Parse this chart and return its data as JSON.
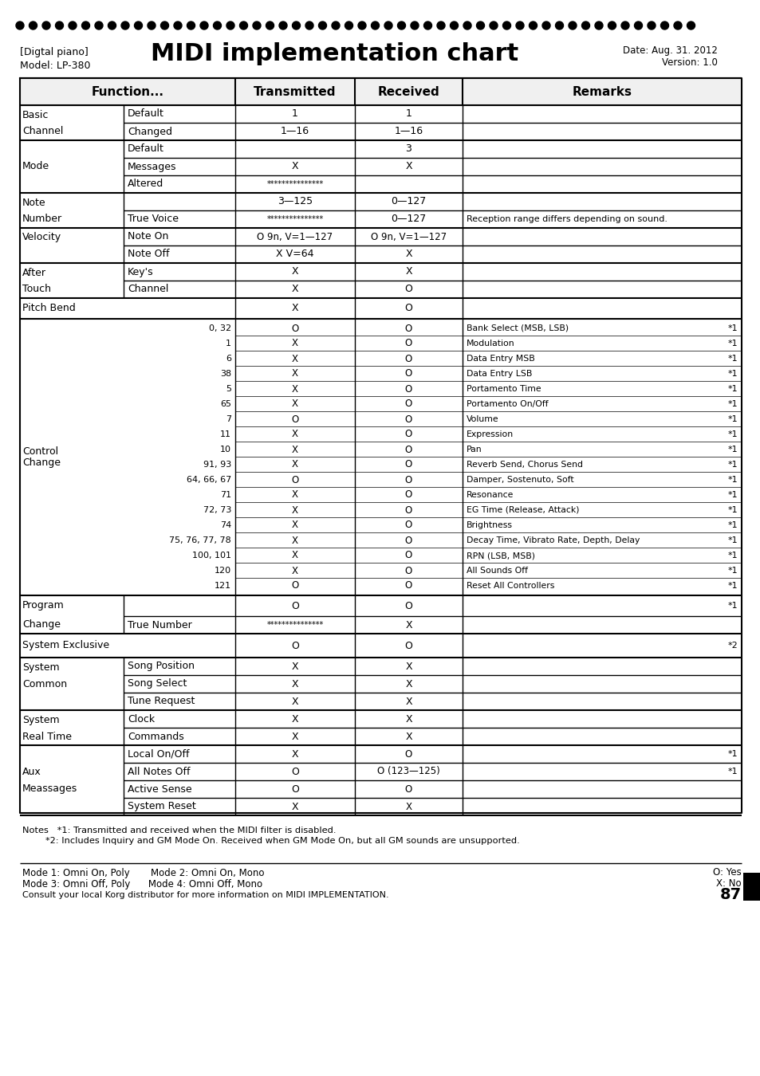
{
  "title": "MIDI implementation chart",
  "subtitle_left1": "[Digtal piano]",
  "subtitle_left2": "Model: LP-380",
  "subtitle_right1": "Date: Aug. 31. 2012",
  "subtitle_right2": "Version: 1.0",
  "col_headers": [
    "Function...",
    "Transmitted",
    "Received",
    "Remarks"
  ],
  "rows": [
    {
      "func1": "Basic",
      "func2": "Default",
      "trans": "1",
      "recv": "1",
      "remarks": ""
    },
    {
      "func1": "Channel",
      "func2": "Changed",
      "trans": "1—16",
      "recv": "1—16",
      "remarks": ""
    },
    {
      "func1": "",
      "func2": "Default",
      "trans": "",
      "recv": "3",
      "remarks": ""
    },
    {
      "func1": "Mode",
      "func2": "Messages",
      "trans": "X",
      "recv": "X",
      "remarks": ""
    },
    {
      "func1": "",
      "func2": "Altered",
      "trans": "***************",
      "recv": "",
      "remarks": ""
    },
    {
      "func1": "Note",
      "func2": "",
      "trans": "3—125",
      "recv": "0—127",
      "remarks": ""
    },
    {
      "func1": "Number",
      "func2": "True Voice",
      "trans": "***************",
      "recv": "0—127",
      "remarks": "Reception range differs depending on sound."
    },
    {
      "func1": "Velocity",
      "func2": "Note On",
      "trans": "O 9n, V=1—127",
      "recv": "O 9n, V=1—127",
      "remarks": ""
    },
    {
      "func1": "",
      "func2": "Note Off",
      "trans": "X V=64",
      "recv": "X",
      "remarks": ""
    },
    {
      "func1": "After",
      "func2": "Key's",
      "trans": "X",
      "recv": "X",
      "remarks": ""
    },
    {
      "func1": "Touch",
      "func2": "Channel",
      "trans": "X",
      "recv": "O",
      "remarks": ""
    },
    {
      "func1": "Pitch Bend",
      "func2": "",
      "trans": "X",
      "recv": "O",
      "remarks": ""
    },
    {
      "func1": "Control",
      "func2": "Change",
      "trans": "",
      "recv": "",
      "remarks": "",
      "is_control": true,
      "control_nums": [
        "0, 32",
        "1",
        "6",
        "38",
        "5",
        "65",
        "7",
        "11",
        "10",
        "91, 93",
        "64, 66, 67",
        "71",
        "72, 73",
        "74",
        "75, 76, 77, 78",
        "100, 101",
        "120",
        "121"
      ],
      "control_trans": [
        "O",
        "X",
        "X",
        "X",
        "X",
        "X",
        "O",
        "X",
        "X",
        "X",
        "O",
        "X",
        "X",
        "X",
        "X",
        "X",
        "X",
        "O"
      ],
      "control_recv": [
        "O",
        "O",
        "O",
        "O",
        "O",
        "O",
        "O",
        "O",
        "O",
        "O",
        "O",
        "O",
        "O",
        "O",
        "O",
        "O",
        "O",
        "O"
      ],
      "control_remarks": [
        "Bank Select (MSB, LSB)",
        "Modulation",
        "Data Entry MSB",
        "Data Entry LSB",
        "Portamento Time",
        "Portamento On/Off",
        "Volume",
        "Expression",
        "Pan",
        "Reverb Send, Chorus Send",
        "Damper, Sostenuto, Soft",
        "Resonance",
        "EG Time (Release, Attack)",
        "Brightness",
        "Decay Time, Vibrato Rate, Depth, Delay",
        "RPN (LSB, MSB)",
        "All Sounds Off",
        "Reset All Controllers"
      ]
    },
    {
      "func1": "Program",
      "func2": "",
      "trans": "O",
      "recv": "O",
      "remarks": "*1"
    },
    {
      "func1": "Change",
      "func2": "True Number",
      "trans": "***************",
      "recv": "X",
      "remarks": ""
    },
    {
      "func1": "System Exclusive",
      "func2": "",
      "trans": "O",
      "recv": "O",
      "remarks": "*2"
    },
    {
      "func1": "System",
      "func2": "Song Position",
      "trans": "X",
      "recv": "X",
      "remarks": ""
    },
    {
      "func1": "Common",
      "func2": "Song Select",
      "trans": "X",
      "recv": "X",
      "remarks": ""
    },
    {
      "func1": "",
      "func2": "Tune Request",
      "trans": "X",
      "recv": "X",
      "remarks": ""
    },
    {
      "func1": "System",
      "func2": "Clock",
      "trans": "X",
      "recv": "X",
      "remarks": ""
    },
    {
      "func1": "Real Time",
      "func2": "Commands",
      "trans": "X",
      "recv": "X",
      "remarks": ""
    },
    {
      "func1": "",
      "func2": "Local On/Off",
      "trans": "X",
      "recv": "O",
      "remarks": "*1"
    },
    {
      "func1": "Aux",
      "func2": "All Notes Off",
      "trans": "O",
      "recv": "O (123—125)",
      "remarks": "*1"
    },
    {
      "func1": "Meassages",
      "func2": "Active Sense",
      "trans": "O",
      "recv": "O",
      "remarks": ""
    },
    {
      "func1": "",
      "func2": "System Reset",
      "trans": "X",
      "recv": "X",
      "remarks": ""
    }
  ],
  "notes": [
    "Notes   *1: Transmitted and received when the MIDI filter is disabled.",
    "        *2: Includes Inquiry and GM Mode On. Received when GM Mode On, but all GM sounds are unsupported."
  ],
  "footer_left": [
    "Mode 1: Omni On, Poly      Mode 2: Omni On, Mono",
    "Mode 3: Omni Off, Poly     Mode 4: Omni Off, Mono",
    "Consult your local Korg distributor for more information on MIDI IMPLEMENTATION."
  ],
  "footer_right": "O: Yes\nX: No\n87",
  "page_number": "87",
  "dots_color": "#000000",
  "table_border_color": "#000000",
  "bg_color": "#ffffff",
  "text_color": "#000000"
}
